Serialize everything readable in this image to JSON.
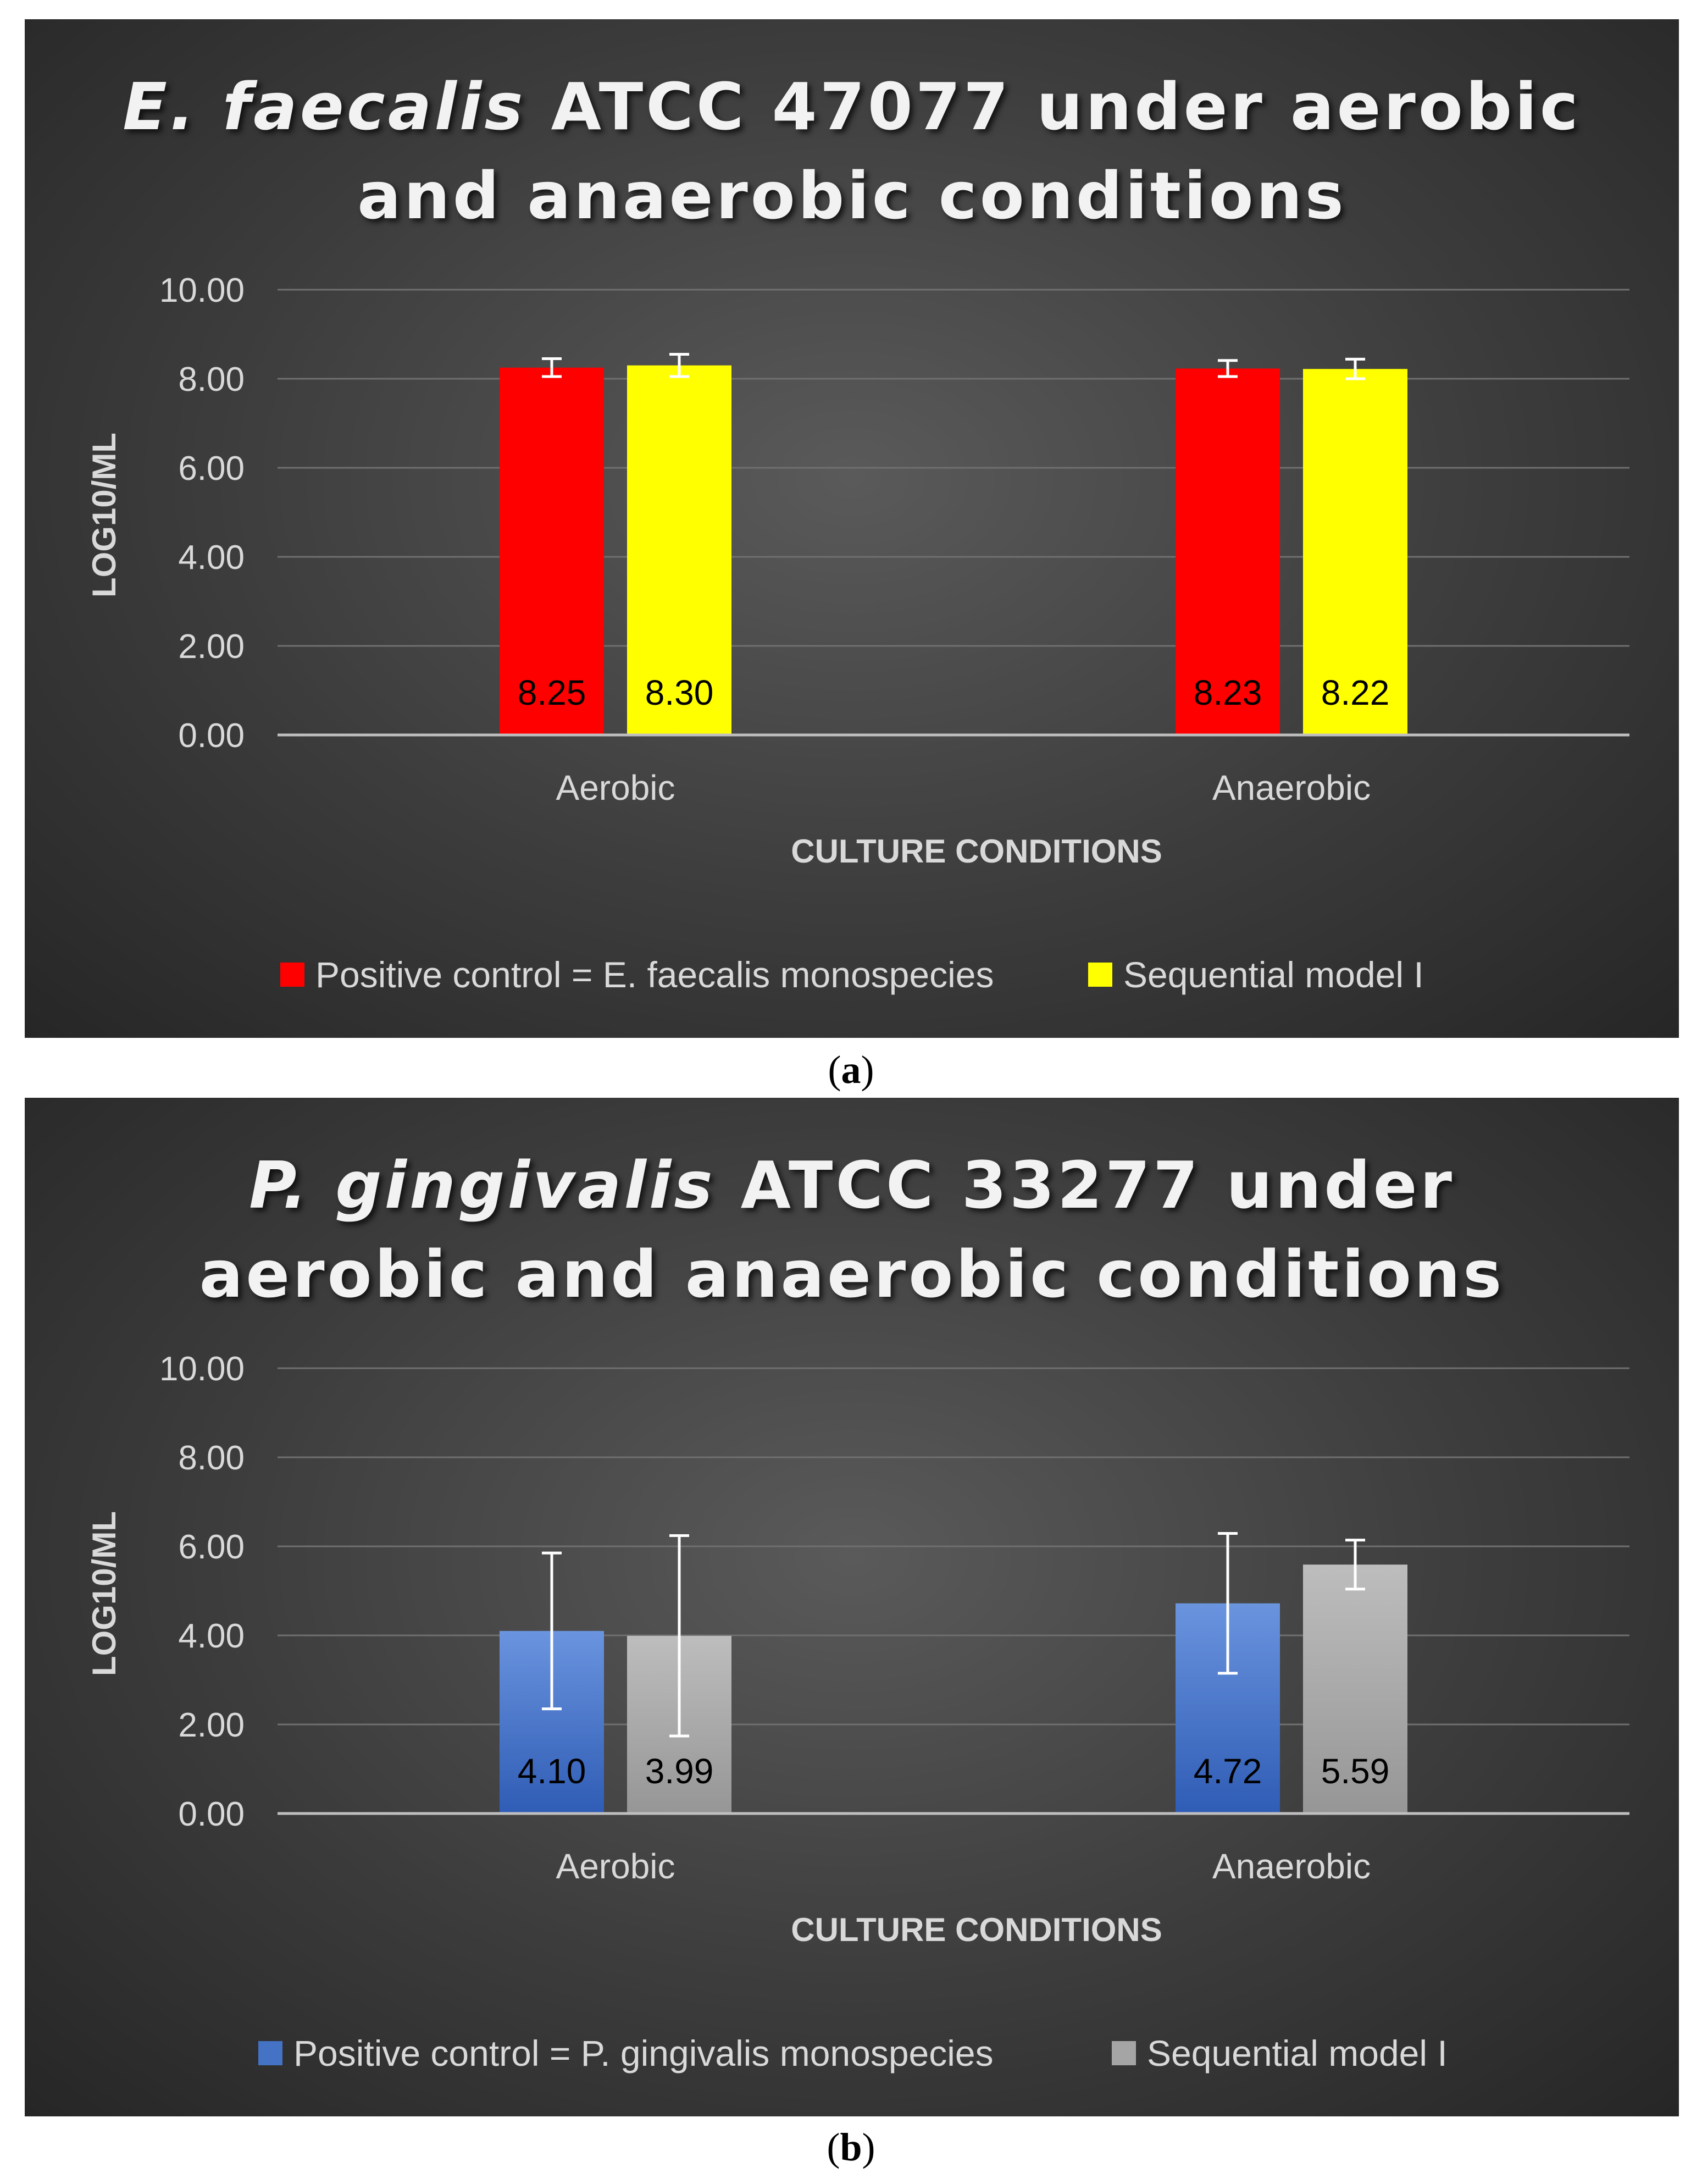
{
  "figure": {
    "caption_a": {
      "open": "(",
      "letter": "a",
      "close": ")"
    },
    "caption_b": {
      "open": "(",
      "letter": "b",
      "close": ")"
    }
  },
  "chart_data": [
    {
      "id": "a",
      "type": "bar",
      "title_italic": "E. faecalis",
      "title_rest_line1": " ATCC 47077 under aerobic",
      "title_line2": "and anaerobic conditions",
      "xlabel": "CULTURE CONDITIONS",
      "ylabel": "LOG10/ML",
      "ylim": [
        0,
        10
      ],
      "yticks": [
        "0.00",
        "2.00",
        "4.00",
        "6.00",
        "8.00",
        "10.00"
      ],
      "grid": true,
      "categories": [
        "Aerobic",
        "Anaerobic"
      ],
      "series": [
        {
          "name": "Positive control = E. faecalis monospecies",
          "color": "#ff0000",
          "values": [
            8.25,
            8.23
          ],
          "labels": [
            "8.25",
            "8.23"
          ],
          "errors": [
            0.2,
            0.18
          ]
        },
        {
          "name": "Sequential model I",
          "color": "#ffff00",
          "values": [
            8.3,
            8.22
          ],
          "labels": [
            "8.30",
            "8.22"
          ],
          "errors": [
            0.25,
            0.22
          ]
        }
      ],
      "legend_position": "bottom"
    },
    {
      "id": "b",
      "type": "bar",
      "title_italic": "P. gingivalis",
      "title_rest_line1": " ATCC 33277 under",
      "title_line2": "aerobic and anaerobic conditions",
      "xlabel": "CULTURE CONDITIONS",
      "ylabel": "LOG10/ML",
      "ylim": [
        0,
        10
      ],
      "yticks": [
        "0.00",
        "2.00",
        "4.00",
        "6.00",
        "8.00",
        "10.00"
      ],
      "grid": true,
      "categories": [
        "Aerobic",
        "Anaerobic"
      ],
      "series": [
        {
          "name": "Positive control = P. gingivalis monospecies",
          "color": "#4472c4",
          "values": [
            4.1,
            4.72
          ],
          "labels": [
            "4.10",
            "4.72"
          ],
          "errors": [
            1.75,
            1.57
          ]
        },
        {
          "name": "Sequential model I",
          "color": "#a5a5a5",
          "values": [
            3.99,
            5.59
          ],
          "labels": [
            "3.99",
            "5.59"
          ],
          "errors": [
            2.25,
            0.55
          ]
        }
      ],
      "legend_position": "bottom"
    }
  ]
}
